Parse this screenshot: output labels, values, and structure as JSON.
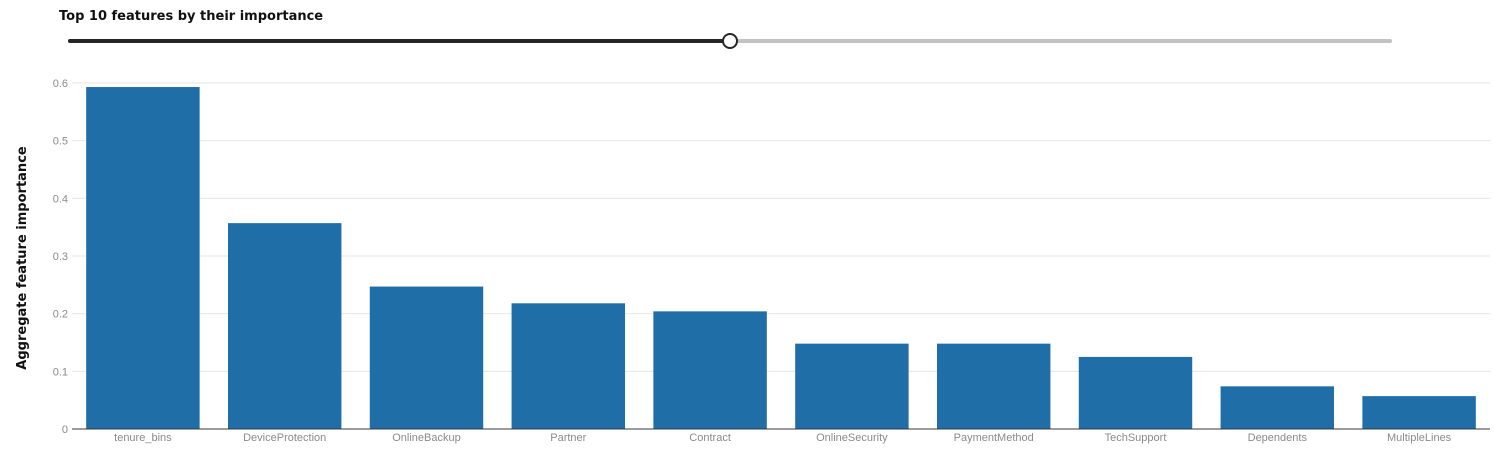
{
  "slider": {
    "label": "Top 10 features by their importance",
    "value": 10,
    "fill_fraction": 0.5
  },
  "chart_data": {
    "type": "bar",
    "title": "",
    "xlabel": "",
    "ylabel": "Aggregate feature importance",
    "ylim": [
      0,
      0.6
    ],
    "yticks": [
      0,
      0.1,
      0.2,
      0.3,
      0.4,
      0.5,
      0.6
    ],
    "grid": true,
    "bar_color": "#1f6ea8",
    "categories": [
      "tenure_bins",
      "DeviceProtection",
      "OnlineBackup",
      "Partner",
      "Contract",
      "OnlineSecurity",
      "PaymentMethod",
      "TechSupport",
      "Dependents",
      "MultipleLines"
    ],
    "values": [
      0.593,
      0.357,
      0.247,
      0.218,
      0.204,
      0.148,
      0.148,
      0.125,
      0.074,
      0.057
    ]
  }
}
